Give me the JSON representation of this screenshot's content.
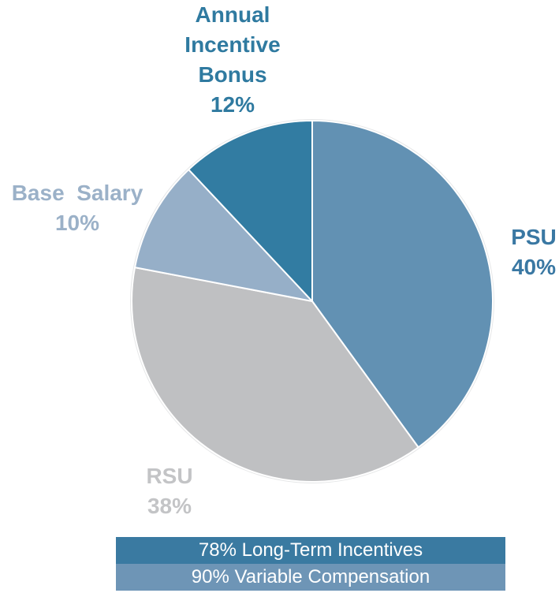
{
  "chart_data": {
    "type": "pie",
    "slices": [
      {
        "label": "PSU",
        "value": 40,
        "display": "40%",
        "color": "#6291b3"
      },
      {
        "label": "RSU",
        "value": 38,
        "display": "38%",
        "color": "#bfc0c2"
      },
      {
        "label": "Base Salary",
        "value": 10,
        "display": "10%",
        "color": "#96afc8"
      },
      {
        "label": "Annual Incentive Bonus",
        "value": 12,
        "display": "12%",
        "color": "#327ca2"
      }
    ],
    "label_lines": {
      "PSU": [
        "PSU",
        "40%"
      ],
      "RSU": [
        "RSU",
        "38%"
      ],
      "Base Salary": [
        "Base  Salary",
        "10%"
      ],
      "Annual Incentive Bonus": [
        "Annual",
        "Incentive",
        "Bonus",
        "12%"
      ]
    },
    "label_colors": {
      "PSU": "#3a78a3",
      "RSU": "#c3c4c6",
      "Base Salary": "#9bb1c8",
      "Annual Incentive Bonus": "#2f7aa0"
    }
  },
  "summary_bands": [
    {
      "text": "78% Long-Term Incentives",
      "color": "#3a7aa1"
    },
    {
      "text": "90% Variable Compensation",
      "color": "#6e95b6"
    }
  ]
}
